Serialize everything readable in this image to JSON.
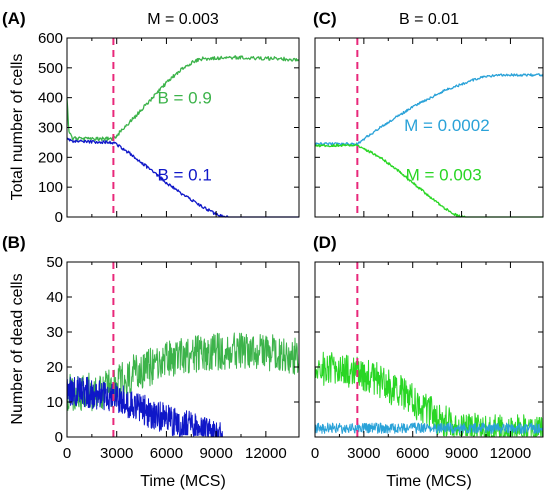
{
  "figure": {
    "ylabel_top": "Total number of cells",
    "ylabel_bottom": "Number of dead cells",
    "xlabel": "Time (MCS)"
  },
  "chart_data": [
    {
      "id": "A",
      "type": "line",
      "tag": "(A)",
      "title": "M = 0.003",
      "xlim": [
        0,
        14000
      ],
      "ylim": [
        0,
        600
      ],
      "xticks": [],
      "yticks": [
        "0",
        "100",
        "200",
        "300",
        "400",
        "500",
        "600"
      ],
      "event_x": 2800,
      "series": [
        {
          "name": "B = 0.9",
          "color": "#3cb34a",
          "noise": 6,
          "x": [
            0,
            100,
            300,
            1000,
            2000,
            2800,
            4000,
            5000,
            6000,
            7000,
            7600,
            8000,
            10000,
            12000,
            14000
          ],
          "y": [
            400,
            290,
            265,
            262,
            262,
            262,
            330,
            390,
            450,
            500,
            520,
            530,
            535,
            532,
            528
          ]
        },
        {
          "name": "B = 0.1",
          "color": "#0f17c8",
          "noise": 5,
          "x": [
            0,
            300,
            1000,
            2000,
            2800,
            4000,
            5000,
            6000,
            7000,
            8000,
            8800,
            9300,
            9800,
            14000
          ],
          "y": [
            265,
            255,
            252,
            252,
            250,
            205,
            160,
            115,
            75,
            40,
            15,
            3,
            0,
            0
          ]
        }
      ],
      "annotations": [
        {
          "text": "B = 0.9",
          "series": 0,
          "x": 7100,
          "y": 400
        },
        {
          "text": "B = 0.1",
          "series": 1,
          "x": 7100,
          "y": 143
        }
      ]
    },
    {
      "id": "C",
      "type": "line",
      "tag": "(C)",
      "title": "B = 0.01",
      "xlim": [
        0,
        14000
      ],
      "ylim": [
        0,
        600
      ],
      "xticks": [],
      "yticks": [],
      "event_x": 2600,
      "series": [
        {
          "name": "M = 0.0002",
          "color": "#2aa2d8",
          "noise": 4,
          "x": [
            0,
            1000,
            2000,
            2600,
            4000,
            6000,
            8000,
            10000,
            11000,
            12000,
            14000
          ],
          "y": [
            245,
            245,
            245,
            245,
            300,
            370,
            425,
            465,
            475,
            476,
            476
          ]
        },
        {
          "name": "M = 0.003",
          "color": "#29d624",
          "noise": 4,
          "x": [
            0,
            1000,
            2000,
            2600,
            4000,
            5000,
            6000,
            7000,
            8000,
            8700,
            9200,
            14000
          ],
          "y": [
            238,
            240,
            241,
            241,
            200,
            160,
            115,
            70,
            28,
            5,
            0,
            0
          ]
        }
      ],
      "annotations": [
        {
          "text": "M = 0.0002",
          "series": 0,
          "x": 8100,
          "y": 308
        },
        {
          "text": "M = 0.003",
          "series": 1,
          "x": 7900,
          "y": 143
        }
      ]
    },
    {
      "id": "B",
      "type": "line",
      "tag": "(B)",
      "title": "",
      "xlim": [
        0,
        14000
      ],
      "ylim": [
        0,
        50
      ],
      "xticks": [
        "0",
        "3000",
        "6000",
        "9000",
        "12000"
      ],
      "yticks": [
        "0",
        "10",
        "20",
        "30",
        "40",
        "50"
      ],
      "event_x": 2800,
      "series": [
        {
          "name": "B = 0.9",
          "color": "#3cb34a",
          "noise": 5.5,
          "dense": true,
          "x": [
            0,
            1500,
            2800,
            4000,
            6000,
            8000,
            10000,
            12000,
            14000
          ],
          "y": [
            13,
            13,
            14,
            18,
            22,
            24,
            25,
            24,
            23
          ]
        },
        {
          "name": "B = 0.1",
          "color": "#0f17c8",
          "noise": 4.5,
          "dense": true,
          "x": [
            0,
            1500,
            2800,
            4000,
            5500,
            7000,
            8000,
            8800,
            9400
          ],
          "y": [
            13,
            12.5,
            11.5,
            9,
            6,
            3.5,
            2,
            0.8,
            0
          ]
        }
      ],
      "annotations": []
    },
    {
      "id": "D",
      "type": "line",
      "tag": "(D)",
      "title": "",
      "xlim": [
        0,
        14000
      ],
      "ylim": [
        0,
        50
      ],
      "xticks": [
        "0",
        "3000",
        "6000",
        "9000",
        "12000"
      ],
      "yticks": [],
      "event_x": 2600,
      "series": [
        {
          "name": "M = 0.003",
          "color": "#29d624",
          "noise": 5,
          "dense": true,
          "x": [
            0,
            1500,
            2600,
            4000,
            5500,
            7000,
            8000,
            8800,
            9400,
            10500,
            14000
          ],
          "y": [
            20,
            19,
            18,
            16,
            12,
            7,
            4,
            2.5,
            2,
            1.5,
            1.5
          ]
        },
        {
          "name": "M = 0.0002",
          "color": "#2aa2d8",
          "noise": 1.5,
          "dense": true,
          "x": [
            0,
            2000,
            4000,
            6000,
            8000,
            10000,
            12000,
            14000
          ],
          "y": [
            2.5,
            2.5,
            2.5,
            2.5,
            2.5,
            2.5,
            2.5,
            2.5
          ]
        }
      ],
      "annotations": []
    }
  ]
}
